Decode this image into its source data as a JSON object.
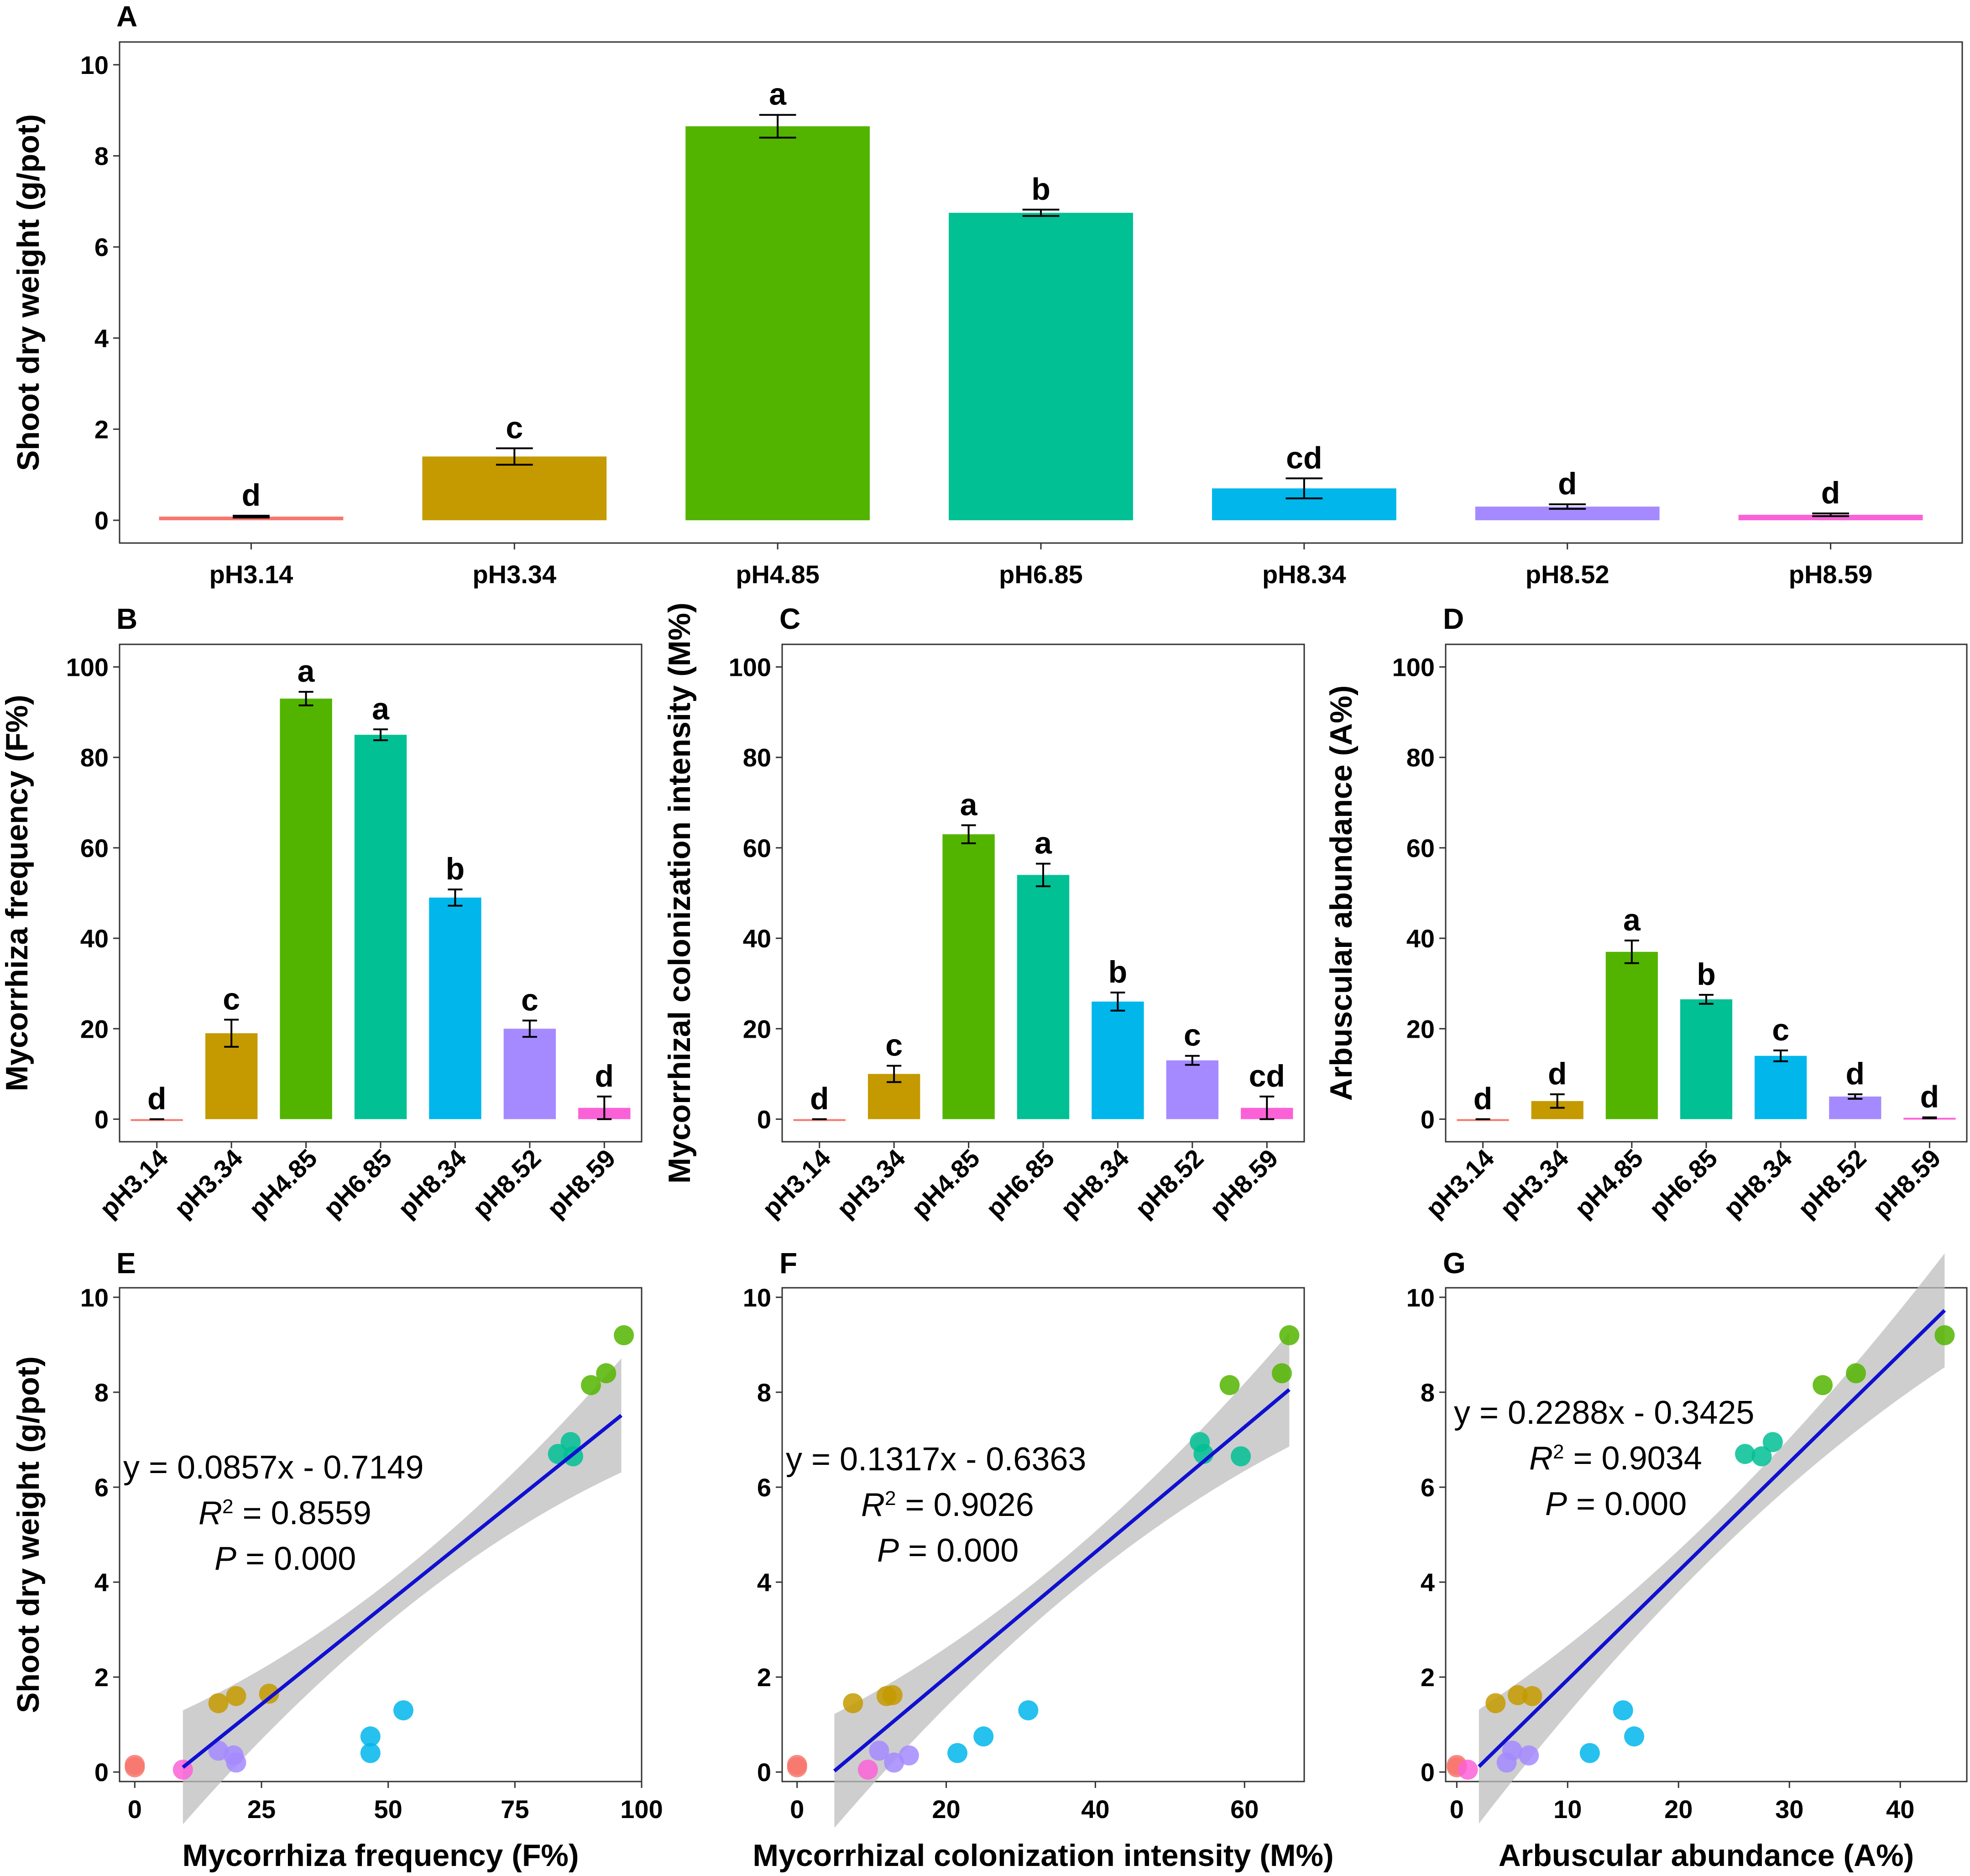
{
  "colors": {
    "pH3.14": "#F8766D",
    "pH3.34": "#C49A00",
    "pH4.85": "#53B400",
    "pH6.85": "#00C094",
    "pH8.34": "#00B6EB",
    "pH8.52": "#A58AFF",
    "pH8.59": "#FB61D7",
    "regression_line": "#1010D0",
    "confidence_band": "#BEBEBE"
  },
  "chart_data": [
    {
      "id": "A",
      "type": "bar",
      "panel_label": "A",
      "ylabel": "Shoot dry weight (g/pot)",
      "xlabel": "",
      "ylim": [
        0,
        10
      ],
      "yticks": [
        0,
        2,
        4,
        6,
        8,
        10
      ],
      "categories": [
        "pH3.14",
        "pH3.34",
        "pH4.85",
        "pH6.85",
        "pH8.34",
        "pH8.52",
        "pH8.59"
      ],
      "values": [
        0.08,
        1.4,
        8.65,
        6.75,
        0.7,
        0.3,
        0.12
      ],
      "errors": [
        0.02,
        0.18,
        0.25,
        0.07,
        0.22,
        0.05,
        0.03
      ],
      "significance": [
        "d",
        "c",
        "a",
        "b",
        "cd",
        "d",
        "d"
      ]
    },
    {
      "id": "B",
      "type": "bar",
      "panel_label": "B",
      "ylabel": "Mycorrhiza frequency (F%)",
      "xlabel": "",
      "ylim": [
        0,
        100
      ],
      "yticks": [
        0,
        20,
        40,
        60,
        80,
        100
      ],
      "categories": [
        "pH3.14",
        "pH3.34",
        "pH4.85",
        "pH6.85",
        "pH8.34",
        "pH8.52",
        "pH8.59"
      ],
      "values": [
        0,
        19,
        93,
        85,
        49,
        20,
        2.5
      ],
      "errors": [
        0,
        3,
        1.5,
        1.2,
        1.8,
        1.8,
        2.5
      ],
      "significance": [
        "d",
        "c",
        "a",
        "a",
        "b",
        "c",
        "d"
      ]
    },
    {
      "id": "C",
      "type": "bar",
      "panel_label": "C",
      "ylabel": "Mycorrhizal colonization intensity (M%)",
      "xlabel": "",
      "ylim": [
        0,
        100
      ],
      "yticks": [
        0,
        20,
        40,
        60,
        80,
        100
      ],
      "categories": [
        "pH3.14",
        "pH3.34",
        "pH4.85",
        "pH6.85",
        "pH8.34",
        "pH8.52",
        "pH8.59"
      ],
      "values": [
        0,
        10,
        63,
        54,
        26,
        13,
        2.5
      ],
      "errors": [
        0,
        1.8,
        2,
        2.5,
        2,
        1,
        2.5
      ],
      "significance": [
        "d",
        "c",
        "a",
        "a",
        "b",
        "c",
        "cd"
      ]
    },
    {
      "id": "D",
      "type": "bar",
      "panel_label": "D",
      "ylabel": "Arbuscular abundance (A%)",
      "xlabel": "",
      "ylim": [
        0,
        100
      ],
      "yticks": [
        0,
        20,
        40,
        60,
        80,
        100
      ],
      "categories": [
        "pH3.14",
        "pH3.34",
        "pH4.85",
        "pH6.85",
        "pH8.34",
        "pH8.52",
        "pH8.59"
      ],
      "values": [
        0,
        4,
        37,
        26.5,
        14,
        5,
        0.3
      ],
      "errors": [
        0,
        1.5,
        2.5,
        1,
        1.2,
        0.5,
        0.1
      ],
      "significance": [
        "d",
        "d",
        "a",
        "b",
        "c",
        "d",
        "d"
      ]
    },
    {
      "id": "E",
      "type": "scatter",
      "panel_label": "E",
      "xlabel": "Mycorrhiza frequency (F%)",
      "ylabel": "Shoot dry weight (g/pot)",
      "xlim": [
        -3,
        100
      ],
      "ylim": [
        -0.2,
        10.2
      ],
      "xticks": [
        0,
        25,
        50,
        75,
        100
      ],
      "yticks": [
        0,
        2,
        4,
        6,
        8,
        10
      ],
      "equation": "y = 0.0857x - 0.7149",
      "r2_value": " = 0.8559",
      "p_value": " = 0.000",
      "fit": {
        "slope": 0.0857,
        "intercept": -0.7149,
        "x_range": [
          9.5,
          96
        ]
      },
      "points": [
        {
          "group": "pH3.14",
          "x": 0,
          "y": 0.1
        },
        {
          "group": "pH3.14",
          "x": 0,
          "y": 0.15
        },
        {
          "group": "pH3.34",
          "x": 16.5,
          "y": 1.45
        },
        {
          "group": "pH3.34",
          "x": 20,
          "y": 1.6
        },
        {
          "group": "pH3.34",
          "x": 26.5,
          "y": 1.65
        },
        {
          "group": "pH4.85",
          "x": 90,
          "y": 8.15
        },
        {
          "group": "pH4.85",
          "x": 93,
          "y": 8.4
        },
        {
          "group": "pH4.85",
          "x": 96.5,
          "y": 9.2
        },
        {
          "group": "pH6.85",
          "x": 83.5,
          "y": 6.7
        },
        {
          "group": "pH6.85",
          "x": 86,
          "y": 6.95
        },
        {
          "group": "pH6.85",
          "x": 86.5,
          "y": 6.65
        },
        {
          "group": "pH8.34",
          "x": 46.5,
          "y": 0.4
        },
        {
          "group": "pH8.34",
          "x": 46.5,
          "y": 0.75
        },
        {
          "group": "pH8.34",
          "x": 53,
          "y": 1.3
        },
        {
          "group": "pH8.52",
          "x": 16.5,
          "y": 0.45
        },
        {
          "group": "pH8.52",
          "x": 19.5,
          "y": 0.35
        },
        {
          "group": "pH8.52",
          "x": 20,
          "y": 0.2
        },
        {
          "group": "pH8.59",
          "x": 9.5,
          "y": 0.05
        }
      ]
    },
    {
      "id": "F",
      "type": "scatter",
      "panel_label": "F",
      "xlabel": "Mycorrhizal colonization intensity (M%)",
      "ylabel": "",
      "xlim": [
        -2,
        68
      ],
      "ylim": [
        -0.2,
        10.2
      ],
      "xticks": [
        0,
        20,
        40,
        60
      ],
      "yticks": [
        0,
        2,
        4,
        6,
        8,
        10
      ],
      "equation": "y = 0.1317x - 0.6363",
      "r2_value": " = 0.9026",
      "p_value": " = 0.000",
      "fit": {
        "slope": 0.1317,
        "intercept": -0.6363,
        "x_range": [
          5,
          66
        ]
      },
      "points": [
        {
          "group": "pH3.14",
          "x": 0,
          "y": 0.1
        },
        {
          "group": "pH3.14",
          "x": 0,
          "y": 0.15
        },
        {
          "group": "pH3.34",
          "x": 7.5,
          "y": 1.45
        },
        {
          "group": "pH3.34",
          "x": 12,
          "y": 1.6
        },
        {
          "group": "pH3.34",
          "x": 12.8,
          "y": 1.62
        },
        {
          "group": "pH4.85",
          "x": 58,
          "y": 8.15
        },
        {
          "group": "pH4.85",
          "x": 65,
          "y": 8.4
        },
        {
          "group": "pH4.85",
          "x": 66,
          "y": 9.2
        },
        {
          "group": "pH6.85",
          "x": 54,
          "y": 6.95
        },
        {
          "group": "pH6.85",
          "x": 54.5,
          "y": 6.7
        },
        {
          "group": "pH6.85",
          "x": 59.5,
          "y": 6.65
        },
        {
          "group": "pH8.34",
          "x": 21.5,
          "y": 0.4
        },
        {
          "group": "pH8.34",
          "x": 25,
          "y": 0.75
        },
        {
          "group": "pH8.34",
          "x": 31,
          "y": 1.3
        },
        {
          "group": "pH8.52",
          "x": 11,
          "y": 0.45
        },
        {
          "group": "pH8.52",
          "x": 13,
          "y": 0.2
        },
        {
          "group": "pH8.52",
          "x": 15,
          "y": 0.35
        },
        {
          "group": "pH8.59",
          "x": 9.5,
          "y": 0.05
        }
      ]
    },
    {
      "id": "G",
      "type": "scatter",
      "panel_label": "G",
      "xlabel": "Arbuscular abundance (A%)",
      "ylabel": "",
      "xlim": [
        -1,
        46
      ],
      "ylim": [
        -0.2,
        10.2
      ],
      "xticks": [
        0,
        10,
        20,
        30,
        40
      ],
      "yticks": [
        0,
        2,
        4,
        6,
        8,
        10
      ],
      "equation": "y = 0.2288x - 0.3425",
      "r2_value": " = 0.9034",
      "p_value": " = 0.000",
      "fit": {
        "slope": 0.2288,
        "intercept": -0.3425,
        "x_range": [
          2,
          44
        ]
      },
      "points": [
        {
          "group": "pH3.14",
          "x": 0,
          "y": 0.1
        },
        {
          "group": "pH3.14",
          "x": 0,
          "y": 0.15
        },
        {
          "group": "pH3.34",
          "x": 3.5,
          "y": 1.45
        },
        {
          "group": "pH3.34",
          "x": 5.5,
          "y": 1.62
        },
        {
          "group": "pH3.34",
          "x": 6.8,
          "y": 1.6
        },
        {
          "group": "pH4.85",
          "x": 33,
          "y": 8.15
        },
        {
          "group": "pH4.85",
          "x": 36,
          "y": 8.4
        },
        {
          "group": "pH4.85",
          "x": 44,
          "y": 9.2
        },
        {
          "group": "pH6.85",
          "x": 26,
          "y": 6.7
        },
        {
          "group": "pH6.85",
          "x": 27.5,
          "y": 6.65
        },
        {
          "group": "pH6.85",
          "x": 28.5,
          "y": 6.95
        },
        {
          "group": "pH8.34",
          "x": 12,
          "y": 0.4
        },
        {
          "group": "pH8.34",
          "x": 15,
          "y": 1.3
        },
        {
          "group": "pH8.34",
          "x": 16,
          "y": 0.75
        },
        {
          "group": "pH8.52",
          "x": 4.5,
          "y": 0.2
        },
        {
          "group": "pH8.52",
          "x": 5,
          "y": 0.45
        },
        {
          "group": "pH8.52",
          "x": 6.5,
          "y": 0.35
        },
        {
          "group": "pH8.59",
          "x": 1,
          "y": 0.05
        }
      ]
    }
  ]
}
